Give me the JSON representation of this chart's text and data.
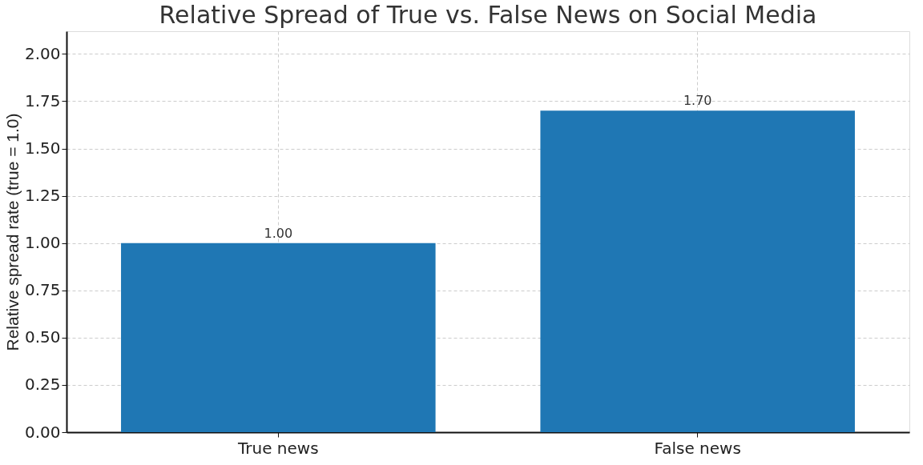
{
  "chart_data": {
    "type": "bar",
    "title": "Relative Spread of True vs. False News on Social Media",
    "ylabel": "Relative spread rate (true = 1.0)",
    "categories": [
      "True news",
      "False news"
    ],
    "values": [
      1.0,
      1.7
    ],
    "color": "#1f77b4",
    "value_labels": [
      "1.00",
      "1.70"
    ],
    "ylim": [
      0,
      2.12
    ],
    "yticks": [
      {
        "value": 0,
        "label": "0.00"
      },
      0.25,
      {
        "value": 0.5,
        "label": "0.50"
      },
      0.75,
      {
        "value": 1.0,
        "label": "1.00"
      },
      1.25,
      {
        "value": 1.5,
        "label": "1.50"
      },
      1.75,
      {
        "value": 2.0,
        "label": "2.00"
      }
    ],
    "grid": true
  }
}
